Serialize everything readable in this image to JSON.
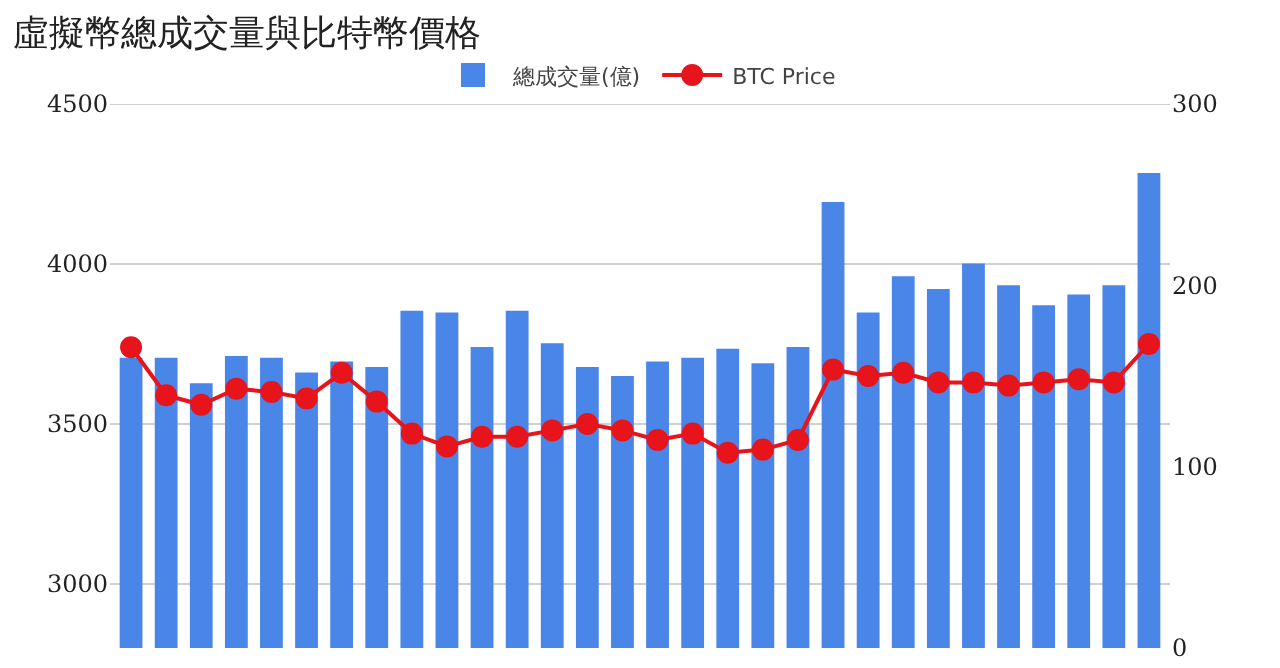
{
  "chart_data": {
    "type": "bar",
    "title": "虛擬幣總成交量與比特幣價格",
    "categories": [
      null,
      null,
      null,
      null,
      null,
      null,
      null,
      null,
      null,
      null,
      null,
      null,
      null,
      null,
      null,
      null,
      null,
      null,
      null,
      null,
      null,
      null,
      null,
      null,
      null,
      null,
      null,
      null,
      null,
      null
    ],
    "series": [
      {
        "name": "總成交量(億)",
        "axis": "y2",
        "color": "#4a86e8",
        "values": [
          160,
          160,
          146,
          161,
          160,
          152,
          158,
          155,
          186,
          185,
          166,
          186,
          168,
          155,
          150,
          158,
          160,
          165,
          157,
          166,
          246,
          185,
          205,
          198,
          212,
          200,
          189,
          195,
          200,
          262
        ]
      },
      {
        "name": "BTC Price",
        "type": "line",
        "color": "#e8141b",
        "marker": "circle",
        "values": [
          3740,
          3590,
          3560,
          3610,
          3600,
          3580,
          3660,
          3570,
          3470,
          3430,
          3460,
          3460,
          3480,
          3500,
          3480,
          3450,
          3470,
          3410,
          3420,
          3450,
          3670,
          3650,
          3660,
          3630,
          3630,
          3620,
          3630,
          3640,
          3630,
          3750
        ]
      }
    ],
    "ylim": [
      2800,
      4500
    ],
    "yticks": [
      3000,
      3500,
      4000,
      4500
    ],
    "y2lim": [
      0,
      300
    ],
    "y2ticks": [
      0,
      100,
      200,
      300
    ],
    "grid": "y",
    "legend": "top",
    "tick_labels": "y"
  }
}
